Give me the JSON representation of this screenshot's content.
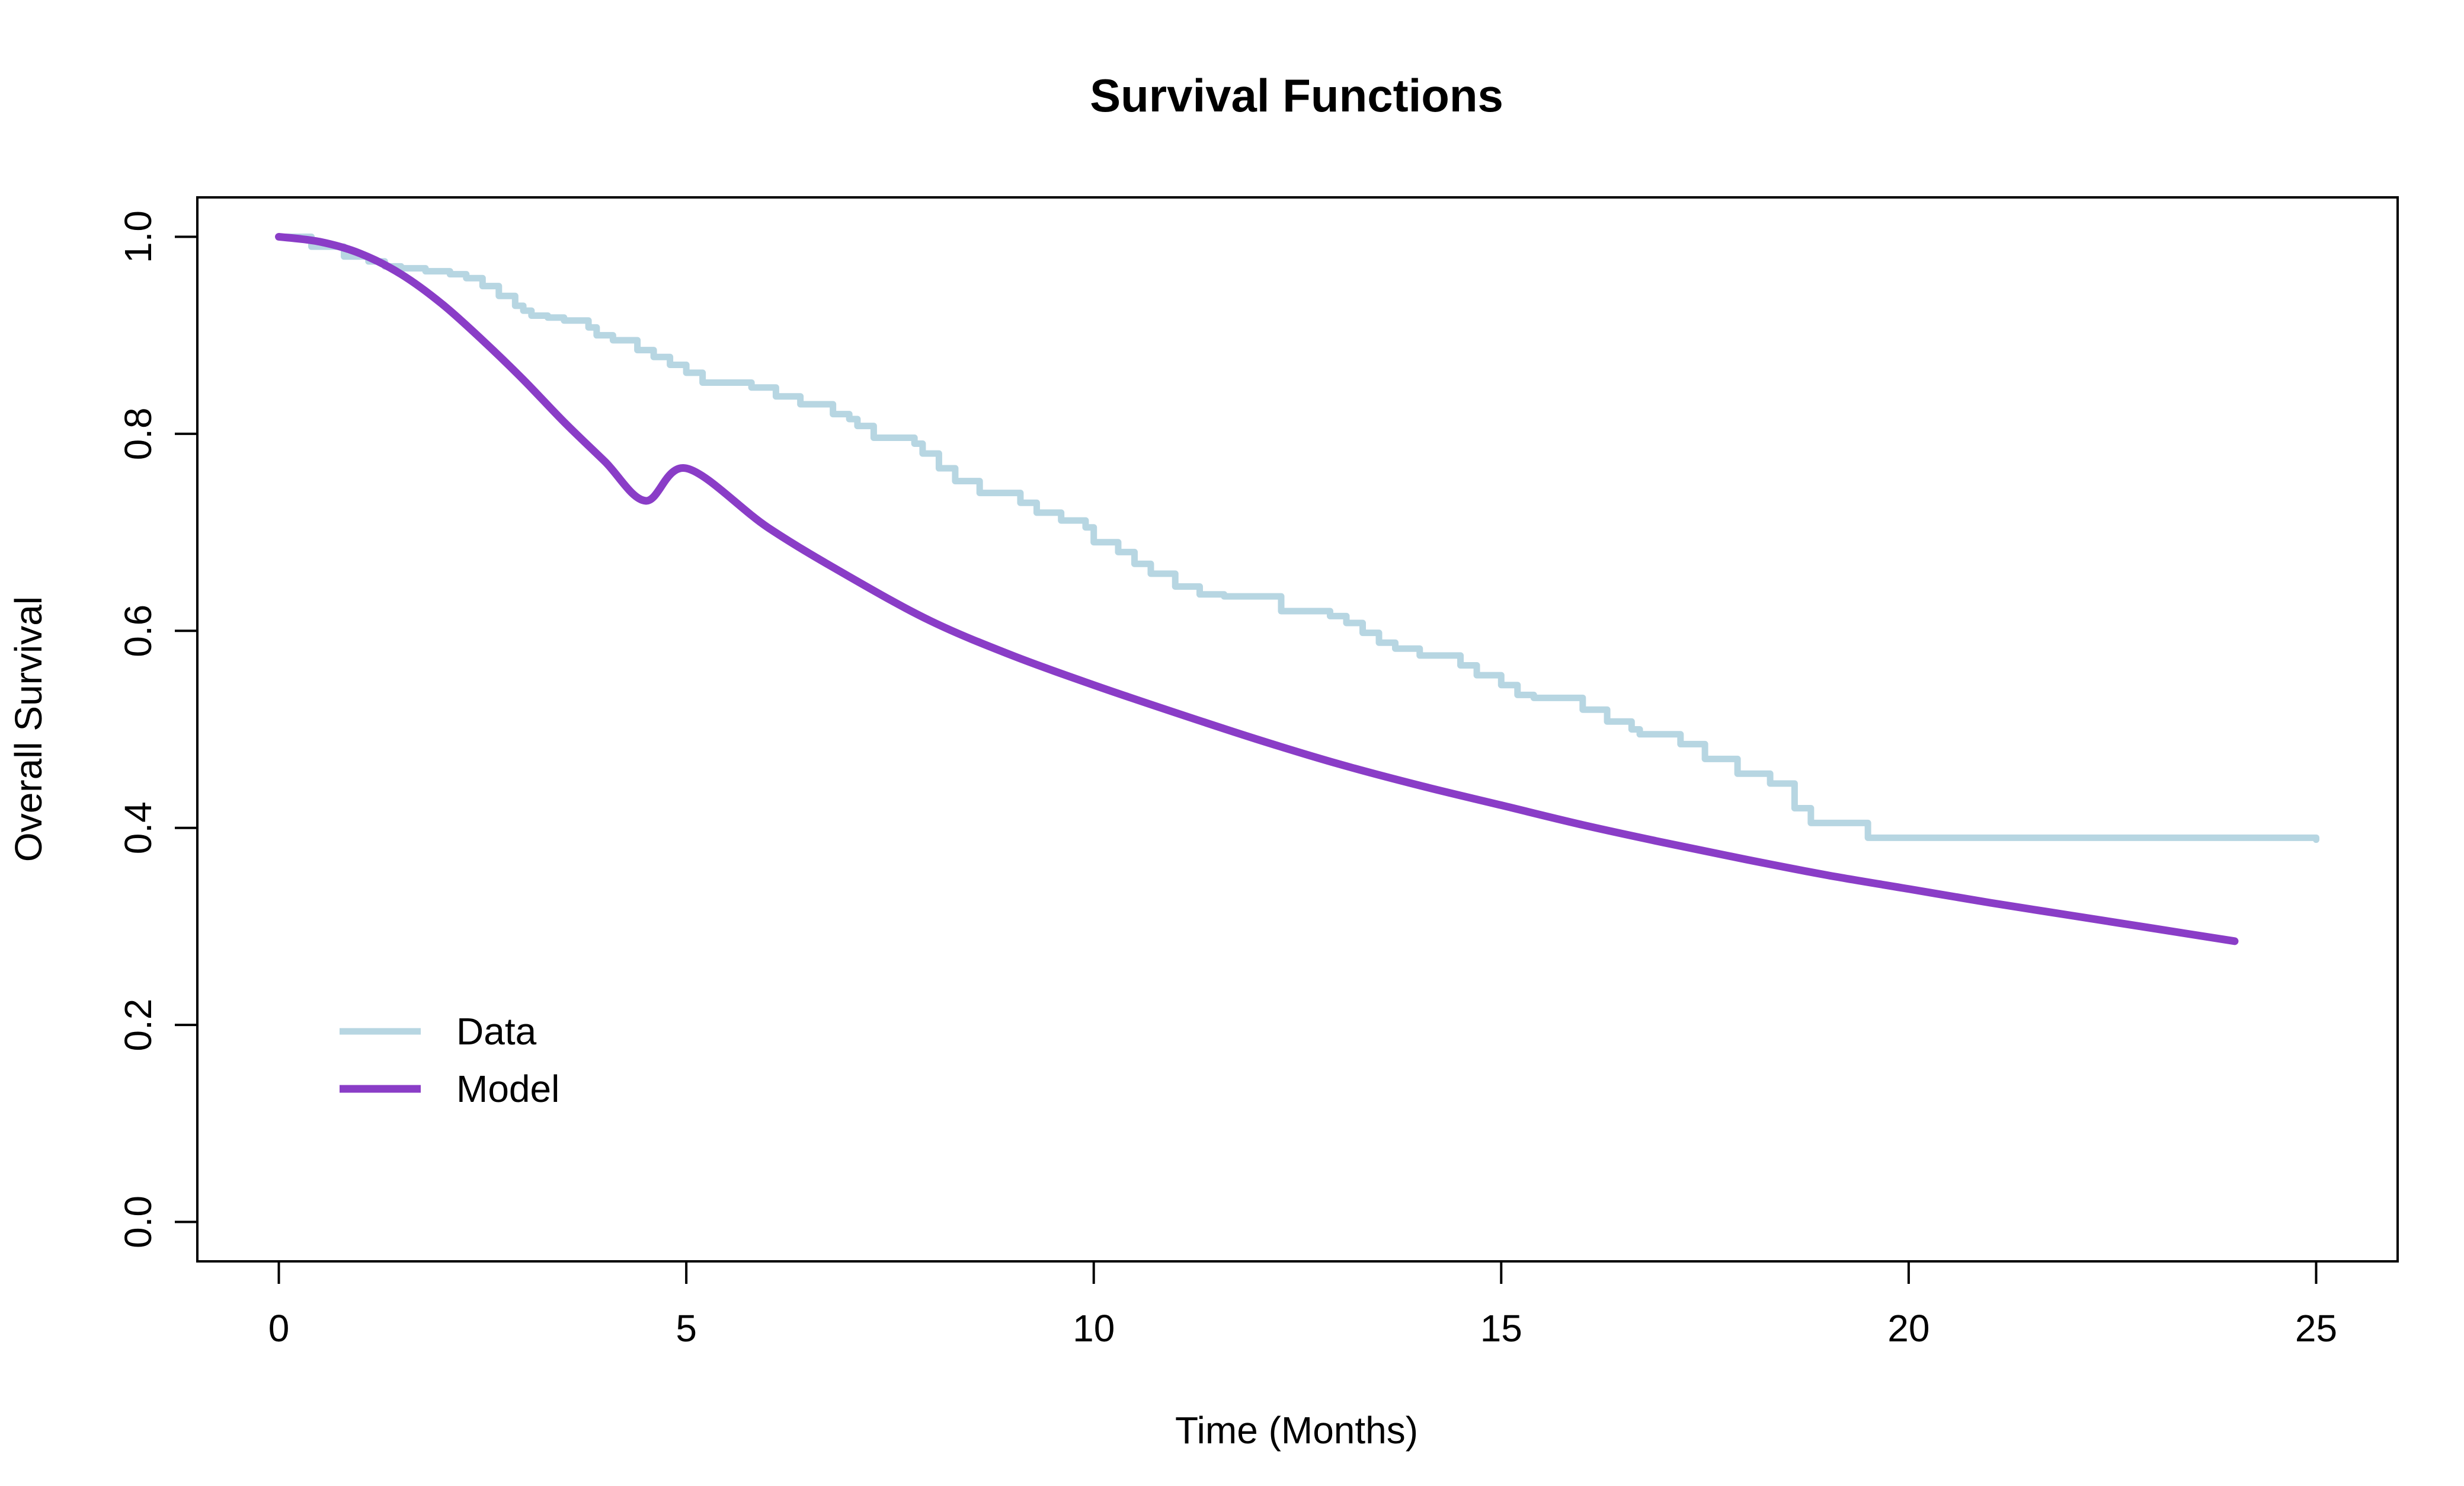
{
  "chart_data": {
    "type": "line",
    "title": "Survival Functions",
    "xlabel": "Time (Months)",
    "ylabel": "Overall Survival",
    "xlim": [
      -1,
      26
    ],
    "ylim": [
      -0.04,
      1.04
    ],
    "x_ticks": [
      0,
      5,
      10,
      15,
      20,
      25
    ],
    "x_tick_labels": [
      "0",
      "5",
      "10",
      "15",
      "20",
      "25"
    ],
    "y_ticks": [
      0.0,
      0.2,
      0.4,
      0.6,
      0.8,
      1.0
    ],
    "y_tick_labels": [
      "0.0",
      "0.2",
      "0.4",
      "0.6",
      "0.8",
      "1.0"
    ],
    "grid": false,
    "legend_position": "bottom-left",
    "series": [
      {
        "name": "Data",
        "style": "step",
        "color": "#B7D6E2",
        "x": [
          0,
          0.4,
          0.8,
          1.1,
          1.3,
          1.5,
          1.8,
          2.1,
          2.3,
          2.5,
          2.7,
          2.9,
          3.0,
          3.1,
          3.3,
          3.5,
          3.8,
          3.9,
          4.1,
          4.4,
          4.6,
          4.8,
          5.0,
          5.2,
          5.8,
          6.1,
          6.4,
          6.8,
          7.0,
          7.1,
          7.3,
          7.8,
          7.9,
          8.1,
          8.3,
          8.6,
          9.1,
          9.3,
          9.6,
          9.9,
          10.0,
          10.3,
          10.5,
          10.7,
          11.0,
          11.3,
          11.6,
          12.3,
          12.9,
          13.1,
          13.3,
          13.5,
          13.7,
          14.0,
          14.5,
          14.7,
          15.0,
          15.2,
          15.4,
          16.0,
          16.3,
          16.6,
          16.7,
          17.2,
          17.5,
          17.9,
          18.3,
          18.6,
          18.8,
          19.5,
          25.0
        ],
        "y": [
          1.0,
          0.99,
          0.98,
          0.975,
          0.97,
          0.968,
          0.965,
          0.962,
          0.958,
          0.95,
          0.94,
          0.93,
          0.925,
          0.92,
          0.918,
          0.915,
          0.908,
          0.9,
          0.895,
          0.885,
          0.878,
          0.87,
          0.862,
          0.852,
          0.847,
          0.838,
          0.83,
          0.82,
          0.815,
          0.808,
          0.796,
          0.79,
          0.78,
          0.765,
          0.752,
          0.74,
          0.73,
          0.72,
          0.712,
          0.705,
          0.69,
          0.68,
          0.668,
          0.658,
          0.645,
          0.637,
          0.635,
          0.62,
          0.615,
          0.608,
          0.598,
          0.588,
          0.582,
          0.575,
          0.565,
          0.555,
          0.545,
          0.535,
          0.532,
          0.52,
          0.508,
          0.5,
          0.495,
          0.485,
          0.47,
          0.455,
          0.445,
          0.42,
          0.405,
          0.39,
          0.388
        ]
      },
      {
        "name": "Model",
        "style": "smooth",
        "color": "#8A3DC7",
        "x": [
          0,
          0.5,
          1,
          1.5,
          2,
          2.5,
          3,
          3.5,
          4,
          4.5,
          5,
          6,
          7,
          8,
          9,
          10,
          11,
          12,
          13,
          14,
          15,
          16,
          17,
          18,
          19,
          20,
          21,
          22,
          23,
          24
        ],
        "y": [
          1.0,
          0.995,
          0.983,
          0.962,
          0.932,
          0.895,
          0.855,
          0.812,
          0.772,
          0.732,
          0.765,
          0.705,
          0.655,
          0.61,
          0.575,
          0.545,
          0.517,
          0.49,
          0.465,
          0.443,
          0.423,
          0.403,
          0.385,
          0.368,
          0.352,
          0.338,
          0.324,
          0.311,
          0.298,
          0.285
        ]
      }
    ]
  }
}
